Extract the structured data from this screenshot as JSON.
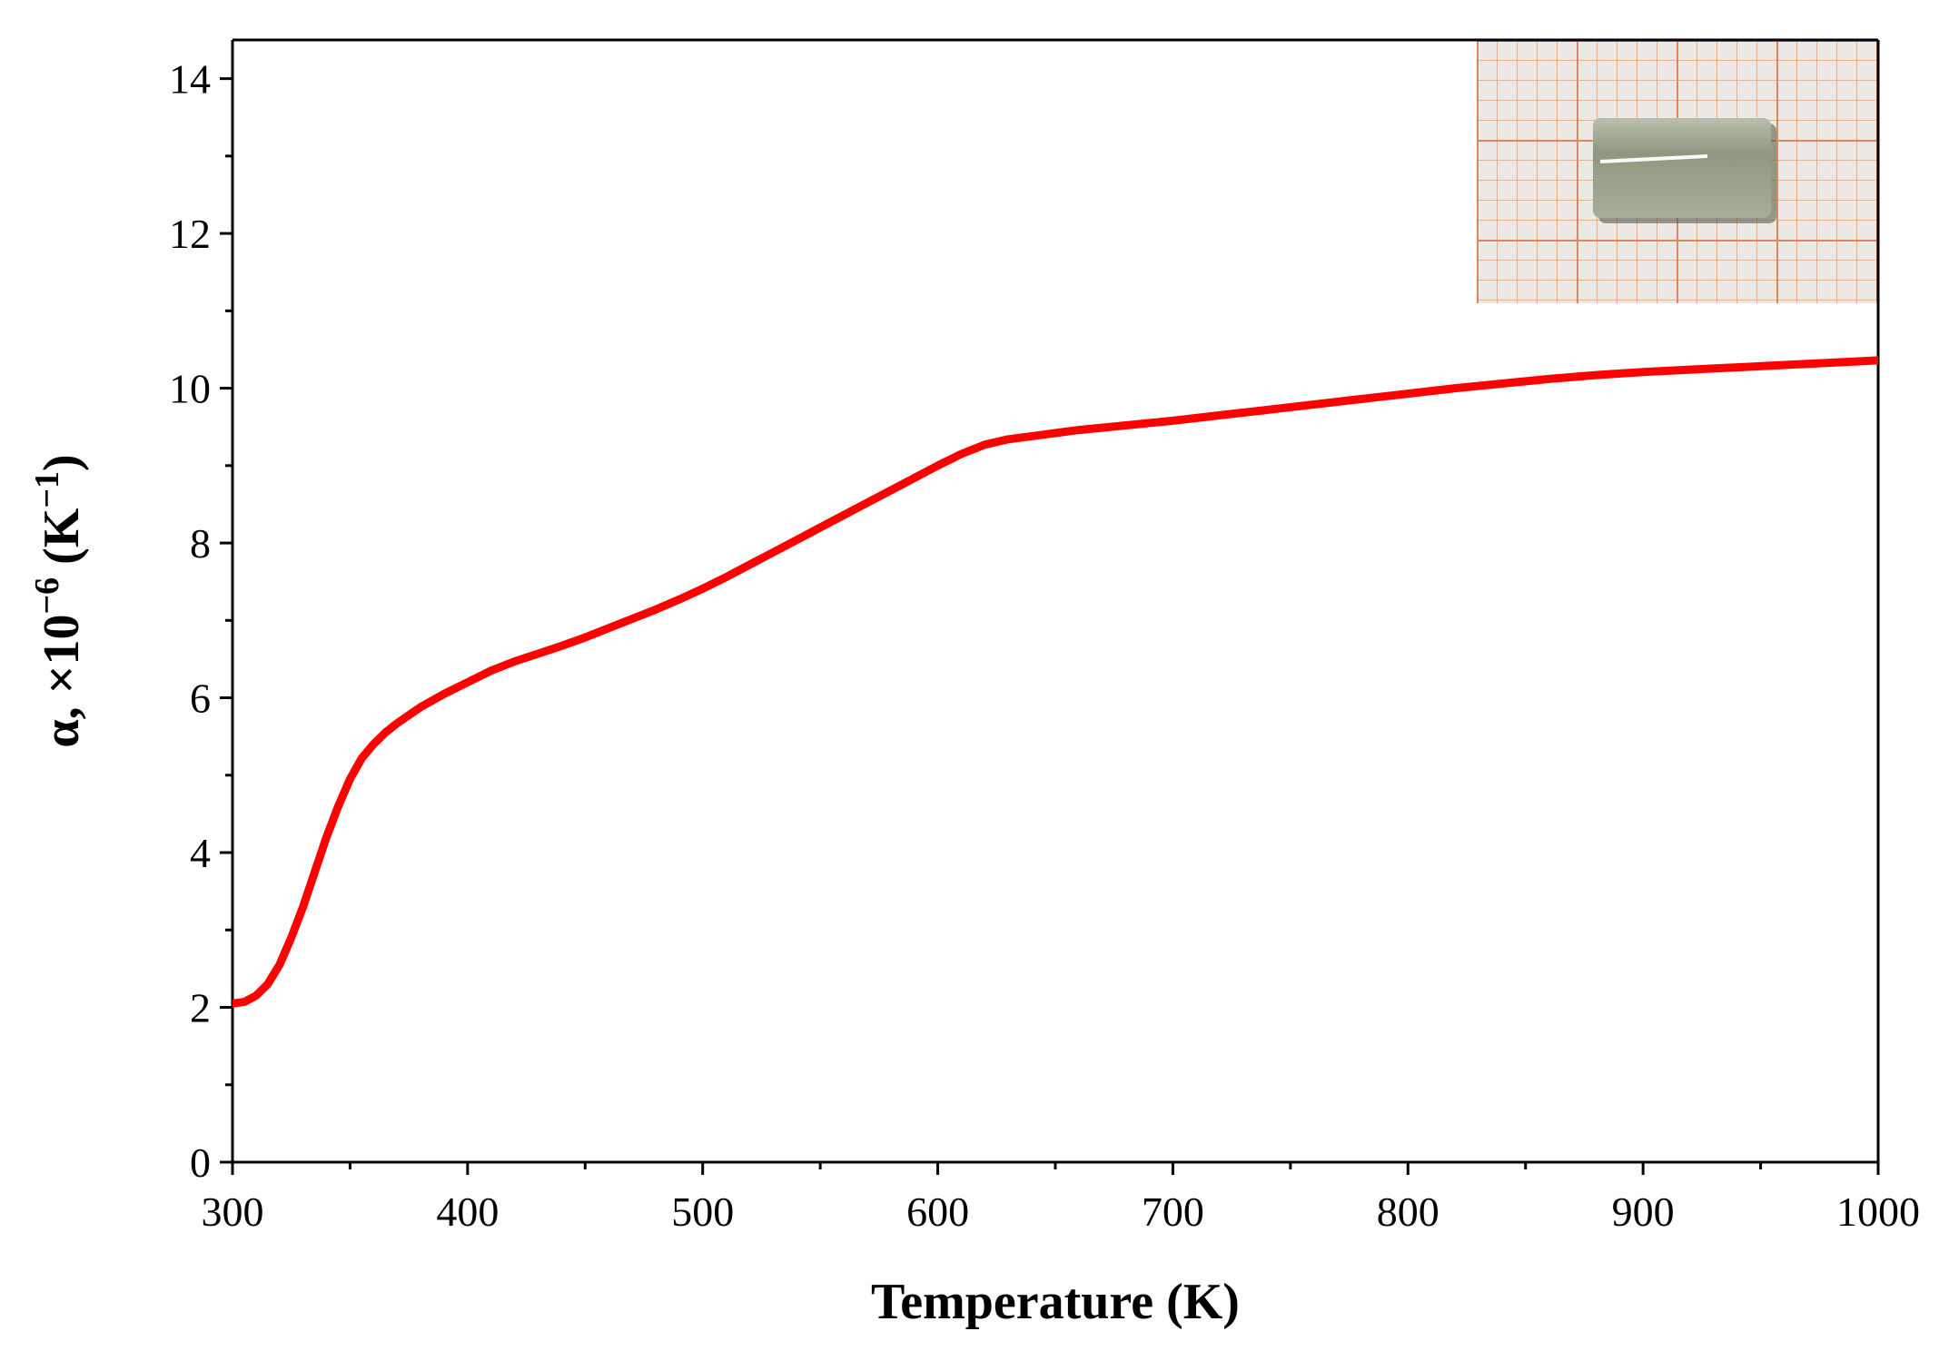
{
  "chart_data": {
    "type": "line",
    "title": "",
    "xlabel": "Temperature (K)",
    "ylabel": {
      "base": "α, ×10",
      "exp": "−6",
      "unit_open": " (K",
      "unit_exp": "−1",
      "unit_close": ")"
    },
    "xlim": [
      300,
      1000
    ],
    "ylim": [
      0,
      14.5
    ],
    "x_ticks": [
      300,
      400,
      500,
      600,
      700,
      800,
      900,
      1000
    ],
    "y_ticks": [
      0,
      2,
      4,
      6,
      8,
      10,
      12,
      14
    ],
    "grid": false,
    "legend": "none",
    "series": [
      {
        "color": "#ff0000",
        "x": [
          300,
          305,
          310,
          315,
          320,
          325,
          330,
          335,
          340,
          345,
          350,
          355,
          360,
          365,
          370,
          380,
          390,
          400,
          410,
          420,
          430,
          440,
          450,
          460,
          470,
          480,
          490,
          500,
          510,
          520,
          530,
          540,
          550,
          560,
          570,
          580,
          590,
          600,
          610,
          620,
          630,
          640,
          650,
          660,
          680,
          700,
          720,
          740,
          760,
          780,
          800,
          820,
          840,
          860,
          880,
          900,
          920,
          940,
          960,
          980,
          1000
        ],
        "y": [
          2.05,
          2.07,
          2.15,
          2.3,
          2.55,
          2.9,
          3.3,
          3.75,
          4.2,
          4.6,
          4.95,
          5.22,
          5.4,
          5.55,
          5.67,
          5.88,
          6.05,
          6.2,
          6.35,
          6.47,
          6.57,
          6.67,
          6.78,
          6.9,
          7.02,
          7.14,
          7.27,
          7.41,
          7.56,
          7.72,
          7.88,
          8.04,
          8.2,
          8.36,
          8.52,
          8.68,
          8.84,
          9.0,
          9.15,
          9.27,
          9.34,
          9.38,
          9.42,
          9.46,
          9.52,
          9.58,
          9.65,
          9.72,
          9.79,
          9.86,
          9.93,
          10.0,
          10.06,
          10.12,
          10.17,
          10.21,
          10.24,
          10.27,
          10.3,
          10.33,
          10.36
        ]
      }
    ],
    "inset": {
      "grid_color": "#d98a5c",
      "background": "#ece8e6",
      "sample_color": "#98a28a"
    }
  }
}
